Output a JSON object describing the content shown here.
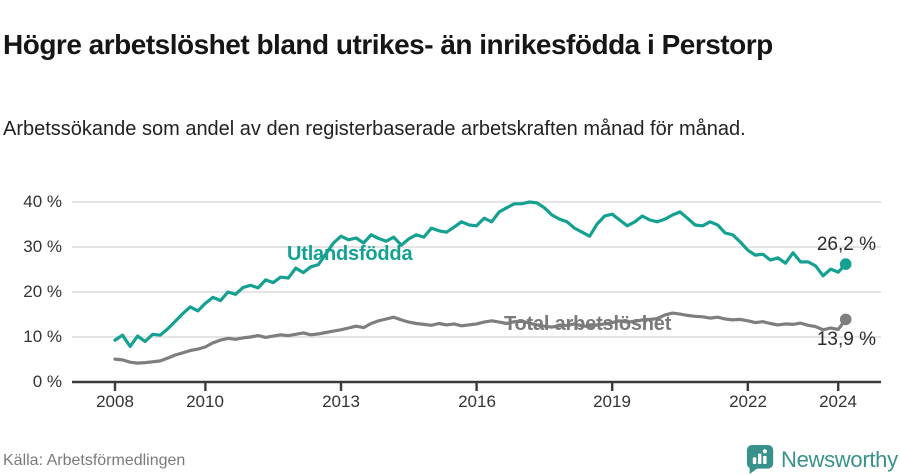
{
  "header": {
    "title": "Högre arbetslöshet bland utrikes- än inrikesfödda i Perstorp",
    "subtitle": "Arbetssökande som andel av den registerbaserade arbetskraften månad för månad."
  },
  "footer": {
    "source": "Källa: Arbetsförmedlingen",
    "brand": "Newsworthy",
    "brand_color": "#38928b"
  },
  "chart_data": {
    "type": "line",
    "title": "Högre arbetslöshet bland utrikes- än inrikesfödda i Perstorp",
    "unit": "%",
    "grid": true,
    "legend_position": "inline-labels",
    "xlim": [
      2007.4,
      2024.9
    ],
    "ylim": [
      0,
      42
    ],
    "x_start": 2008,
    "x_step_years": 0.1666667,
    "x_ticks": [
      {
        "year": 2008,
        "label": "2008"
      },
      {
        "year": 2010,
        "label": "2010"
      },
      {
        "year": 2013,
        "label": "2013"
      },
      {
        "year": 2016,
        "label": "2016"
      },
      {
        "year": 2019,
        "label": "2019"
      },
      {
        "year": 2022,
        "label": "2022"
      },
      {
        "year": 2024,
        "label": "2024"
      }
    ],
    "y_ticks": [
      {
        "value": 40,
        "label": "40 %"
      },
      {
        "value": 30,
        "label": "30 %"
      },
      {
        "value": 20,
        "label": "20 %"
      },
      {
        "value": 10,
        "label": "10 %"
      },
      {
        "value": 0,
        "label": "0 %"
      }
    ],
    "series": [
      {
        "name": "Utlandsfödda",
        "color": "#14a192",
        "end_label": "26,2 %",
        "end_value": 26.2,
        "values": [
          9.3,
          10.4,
          7.9,
          10.2,
          9.0,
          10.6,
          10.4,
          11.8,
          13.5,
          15.2,
          16.7,
          15.8,
          17.5,
          18.8,
          18.1,
          20.0,
          19.5,
          21.0,
          21.5,
          20.9,
          22.7,
          22.1,
          23.3,
          23.1,
          25.3,
          24.3,
          25.6,
          26.1,
          28.5,
          30.9,
          32.4,
          31.6,
          32.0,
          30.9,
          32.7,
          31.9,
          31.3,
          32.2,
          30.4,
          31.8,
          32.7,
          32.2,
          34.2,
          33.6,
          33.3,
          34.4,
          35.6,
          34.9,
          34.7,
          36.4,
          35.6,
          37.8,
          38.7,
          39.6,
          39.6,
          40.0,
          39.8,
          38.7,
          37.1,
          36.2,
          35.6,
          34.2,
          33.3,
          32.4,
          35.1,
          36.9,
          37.3,
          36.0,
          34.7,
          35.6,
          36.9,
          36.0,
          35.6,
          36.2,
          37.1,
          37.8,
          36.4,
          34.9,
          34.7,
          35.6,
          34.9,
          33.1,
          32.7,
          31.1,
          29.3,
          28.2,
          28.4,
          27.1,
          27.6,
          26.4,
          28.7,
          26.7,
          26.7,
          25.8,
          23.6,
          25.1,
          24.4,
          26.2
        ]
      },
      {
        "name": "Total arbetslöshet",
        "color": "#7e7e7e",
        "end_label": "13,9 %",
        "end_value": 13.9,
        "values": [
          5.1,
          4.9,
          4.4,
          4.2,
          4.3,
          4.5,
          4.7,
          5.3,
          6.0,
          6.5,
          7.0,
          7.3,
          7.8,
          8.7,
          9.3,
          9.7,
          9.5,
          9.8,
          10.0,
          10.3,
          9.9,
          10.2,
          10.5,
          10.3,
          10.6,
          10.9,
          10.5,
          10.7,
          11.0,
          11.3,
          11.6,
          12.0,
          12.4,
          12.1,
          13.0,
          13.6,
          14.0,
          14.4,
          13.8,
          13.3,
          13.0,
          12.8,
          12.6,
          13.0,
          12.7,
          12.9,
          12.5,
          12.7,
          12.9,
          13.3,
          13.6,
          13.3,
          13.0,
          13.4,
          13.5,
          13.1,
          12.7,
          12.4,
          12.2,
          12.5,
          12.6,
          12.9,
          12.5,
          12.3,
          12.7,
          12.9,
          13.2,
          13.6,
          13.3,
          13.5,
          13.8,
          13.9,
          14.1,
          14.9,
          15.3,
          15.1,
          14.8,
          14.6,
          14.5,
          14.2,
          14.4,
          14.0,
          13.8,
          13.9,
          13.6,
          13.2,
          13.4,
          13.0,
          12.7,
          12.9,
          12.8,
          13.1,
          12.6,
          12.3,
          11.6,
          12.0,
          11.7,
          13.9
        ]
      }
    ]
  }
}
